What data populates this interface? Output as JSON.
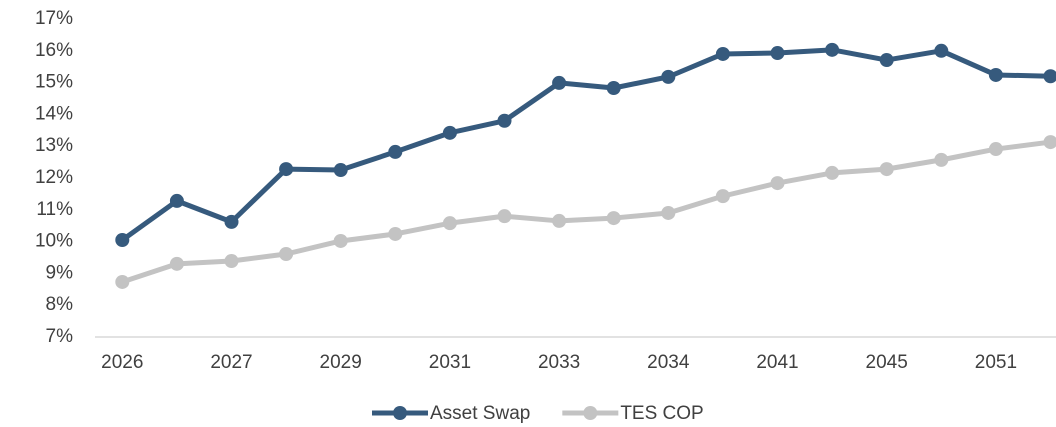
{
  "chart_data": {
    "type": "line",
    "categories": [
      "2026",
      null,
      "2027",
      null,
      "2029",
      null,
      "2031",
      null,
      "2033",
      null,
      "2034",
      null,
      "2041",
      null,
      "2045",
      null,
      "2051",
      null
    ],
    "series": [
      {
        "name": "Asset Swap",
        "color": "#365a7d",
        "values": [
          10.05,
          11.28,
          10.62,
          12.28,
          12.25,
          12.82,
          13.42,
          13.8,
          14.99,
          14.83,
          15.18,
          15.9,
          15.93,
          16.03,
          15.71,
          16.0,
          15.24,
          15.2
        ]
      },
      {
        "name": "TES COP",
        "color": "#c3c3c3",
        "values": [
          8.73,
          9.3,
          9.39,
          9.61,
          10.02,
          10.24,
          10.58,
          10.8,
          10.65,
          10.74,
          10.9,
          11.43,
          11.84,
          12.16,
          12.28,
          12.57,
          12.91,
          13.13
        ]
      }
    ],
    "ylim": [
      7,
      17
    ],
    "yticks": [
      {
        "value": 7,
        "label": "7%"
      },
      {
        "value": 8,
        "label": "8%"
      },
      {
        "value": 9,
        "label": "9%"
      },
      {
        "value": 10,
        "label": "10%"
      },
      {
        "value": 11,
        "label": "11%"
      },
      {
        "value": 12,
        "label": "12%"
      },
      {
        "value": 13,
        "label": "13%"
      },
      {
        "value": 14,
        "label": "14%"
      },
      {
        "value": 15,
        "label": "15%"
      },
      {
        "value": 16,
        "label": "16%"
      },
      {
        "value": 17,
        "label": "17%"
      }
    ],
    "grid": false,
    "legend": "bottom"
  }
}
